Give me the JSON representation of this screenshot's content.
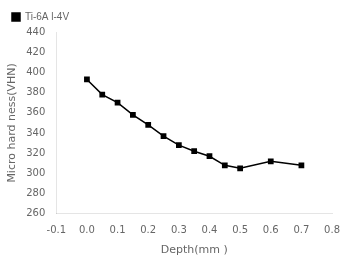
{
  "chart_data": {
    "type": "line",
    "xlabel": "Depth(mm )",
    "ylabel": "Micro hard ness(VHN)",
    "x": [
      0.0,
      0.05,
      0.1,
      0.15,
      0.2,
      0.25,
      0.3,
      0.35,
      0.4,
      0.45,
      0.5,
      0.6,
      0.7
    ],
    "series": [
      {
        "name": "Ti-6A l-4V",
        "color": "#000000",
        "marker": "square",
        "values": [
          393,
          378,
          370,
          358,
          348,
          337,
          328,
          322,
          317,
          308,
          305,
          312,
          308
        ]
      }
    ],
    "xlim": [
      -0.1,
      0.8
    ],
    "ylim": [
      260,
      440
    ],
    "xticks": [
      -0.1,
      {
        "value": 0.0,
        "label": "0.0"
      },
      0.1,
      0.2,
      0.3,
      0.4,
      0.5,
      0.6,
      0.7,
      0.8
    ],
    "yticks": [
      260,
      280,
      300,
      320,
      340,
      360,
      380,
      400,
      420,
      440
    ],
    "grid": false,
    "legend": "upper left"
  }
}
